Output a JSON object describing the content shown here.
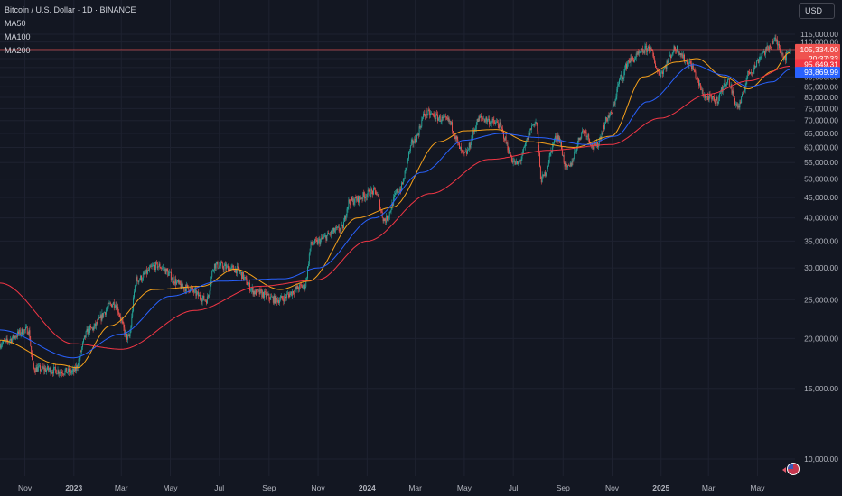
{
  "legend": {
    "symbol": "Bitcoin / U.S. Dollar · 1D · BINANCE",
    "ma50": "MA50",
    "ma100": "MA100",
    "ma200": "MA200"
  },
  "currency_label": "USD",
  "colors": {
    "background": "#131722",
    "grid": "#1e2230",
    "up": "#26a69a",
    "down": "#ef5350",
    "ma50": "#f7a21b",
    "ma100": "#2962ff",
    "ma200": "#f23645",
    "axis_text": "#b2b5be"
  },
  "chart_data": {
    "type": "candlestick",
    "y_axis": {
      "ticks": [
        "115,000.00",
        "110,000.00",
        "105,000.00",
        "100,000.00",
        "95,000.00",
        "90,000.00",
        "85,000.00",
        "80,000.00",
        "75,000.00",
        "70,000.00",
        "65,000.00",
        "60,000.00",
        "55,000.00",
        "50,000.00",
        "45,000.00",
        "40,000.00",
        "35,000.00",
        "30,000.00",
        "25,000.00",
        "20,000.00",
        "15,000.00",
        "10,000.00"
      ],
      "scale": "log",
      "ylim": [
        9500,
        118000
      ]
    },
    "x_axis": {
      "ticks": [
        "Nov",
        "2023",
        "Mar",
        "May",
        "Jul",
        "Sep",
        "Nov",
        "2024",
        "Mar",
        "May",
        "Jul",
        "Sep",
        "Nov",
        "2025",
        "Mar",
        "May"
      ],
      "range": [
        "2022-10-01",
        "2025-06-10"
      ]
    },
    "price_labels": {
      "last_price": "105,334.00",
      "countdown": "20:37:33",
      "ma50": "103,413.89",
      "ma200": "95,649.31",
      "ma100": "93,869.99"
    },
    "last_price_value": 105334,
    "price_anchors": [
      [
        "2022-10-01",
        19400
      ],
      [
        "2022-11-05",
        21000
      ],
      [
        "2022-11-12",
        16800
      ],
      [
        "2022-12-31",
        16500
      ],
      [
        "2023-01-20",
        21000
      ],
      [
        "2023-02-20",
        24500
      ],
      [
        "2023-03-10",
        20000
      ],
      [
        "2023-03-20",
        28000
      ],
      [
        "2023-04-14",
        30400
      ],
      [
        "2023-05-20",
        26800
      ],
      [
        "2023-06-15",
        25000
      ],
      [
        "2023-06-25",
        30500
      ],
      [
        "2023-07-20",
        29800
      ],
      [
        "2023-08-17",
        26000
      ],
      [
        "2023-09-11",
        25000
      ],
      [
        "2023-10-15",
        27000
      ],
      [
        "2023-10-24",
        34500
      ],
      [
        "2023-11-30",
        37500
      ],
      [
        "2023-12-10",
        44000
      ],
      [
        "2024-01-11",
        46500
      ],
      [
        "2024-01-23",
        39500
      ],
      [
        "2024-02-10",
        47000
      ],
      [
        "2024-02-28",
        62000
      ],
      [
        "2024-03-14",
        73000
      ],
      [
        "2024-04-10",
        70000
      ],
      [
        "2024-05-01",
        57500
      ],
      [
        "2024-05-21",
        71000
      ],
      [
        "2024-06-10",
        69000
      ],
      [
        "2024-07-05",
        54500
      ],
      [
        "2024-07-29",
        69500
      ],
      [
        "2024-08-05",
        50000
      ],
      [
        "2024-08-25",
        64000
      ],
      [
        "2024-09-06",
        53000
      ],
      [
        "2024-09-27",
        66000
      ],
      [
        "2024-10-10",
        60000
      ],
      [
        "2024-10-29",
        72000
      ],
      [
        "2024-11-13",
        90000
      ],
      [
        "2024-11-22",
        99000
      ],
      [
        "2024-12-17",
        106000
      ],
      [
        "2024-12-30",
        92000
      ],
      [
        "2025-01-20",
        106000
      ],
      [
        "2025-02-03",
        98000
      ],
      [
        "2025-02-27",
        80000
      ],
      [
        "2025-03-10",
        78500
      ],
      [
        "2025-03-24",
        88000
      ],
      [
        "2025-04-07",
        76000
      ],
      [
        "2025-04-22",
        93000
      ],
      [
        "2025-05-10",
        104000
      ],
      [
        "2025-05-22",
        111000
      ],
      [
        "2025-06-05",
        101000
      ],
      [
        "2025-06-10",
        105334
      ]
    ],
    "ma_anchors": {
      "MA50": [
        [
          "2022-10-01",
          19800
        ],
        [
          "2022-12-15",
          17200
        ],
        [
          "2023-01-05",
          16900
        ],
        [
          "2023-02-15",
          21500
        ],
        [
          "2023-04-10",
          26500
        ],
        [
          "2023-06-10",
          27000
        ],
        [
          "2023-07-20",
          29800
        ],
        [
          "2023-09-15",
          26500
        ],
        [
          "2023-10-20",
          27800
        ],
        [
          "2023-12-20",
          40000
        ],
        [
          "2024-02-01",
          42500
        ],
        [
          "2024-03-31",
          62000
        ],
        [
          "2024-05-01",
          66000
        ],
        [
          "2024-06-10",
          66500
        ],
        [
          "2024-07-20",
          62000
        ],
        [
          "2024-09-15",
          60000
        ],
        [
          "2024-10-31",
          64000
        ],
        [
          "2024-12-10",
          90000
        ],
        [
          "2025-01-20",
          98000
        ],
        [
          "2025-02-15",
          100000
        ],
        [
          "2025-03-20",
          90000
        ],
        [
          "2025-04-20",
          84000
        ],
        [
          "2025-05-20",
          93000
        ],
        [
          "2025-06-10",
          103414
        ]
      ],
      "MA100": [
        [
          "2022-10-01",
          21000
        ],
        [
          "2022-12-31",
          17900
        ],
        [
          "2023-02-28",
          20500
        ],
        [
          "2023-05-01",
          25500
        ],
        [
          "2023-07-01",
          27800
        ],
        [
          "2023-09-20",
          28200
        ],
        [
          "2023-11-01",
          30000
        ],
        [
          "2024-01-10",
          40000
        ],
        [
          "2024-03-10",
          52000
        ],
        [
          "2024-05-01",
          62500
        ],
        [
          "2024-06-15",
          65000
        ],
        [
          "2024-08-01",
          63500
        ],
        [
          "2024-10-01",
          61000
        ],
        [
          "2024-11-05",
          64000
        ],
        [
          "2024-12-15",
          78000
        ],
        [
          "2025-02-10",
          96500
        ],
        [
          "2025-03-20",
          91000
        ],
        [
          "2025-04-20",
          85000
        ],
        [
          "2025-05-20",
          87500
        ],
        [
          "2025-06-10",
          93870
        ]
      ],
      "MA200": [
        [
          "2022-10-01",
          27500
        ],
        [
          "2022-12-31",
          19400
        ],
        [
          "2023-03-01",
          18800
        ],
        [
          "2023-06-01",
          23500
        ],
        [
          "2023-08-20",
          27000
        ],
        [
          "2023-10-31",
          28000
        ],
        [
          "2024-01-01",
          35000
        ],
        [
          "2024-03-20",
          46000
        ],
        [
          "2024-06-01",
          56000
        ],
        [
          "2024-08-15",
          59000
        ],
        [
          "2024-10-31",
          61000
        ],
        [
          "2024-12-31",
          71000
        ],
        [
          "2025-03-01",
          81500
        ],
        [
          "2025-04-20",
          88000
        ],
        [
          "2025-06-10",
          95649
        ]
      ]
    }
  }
}
